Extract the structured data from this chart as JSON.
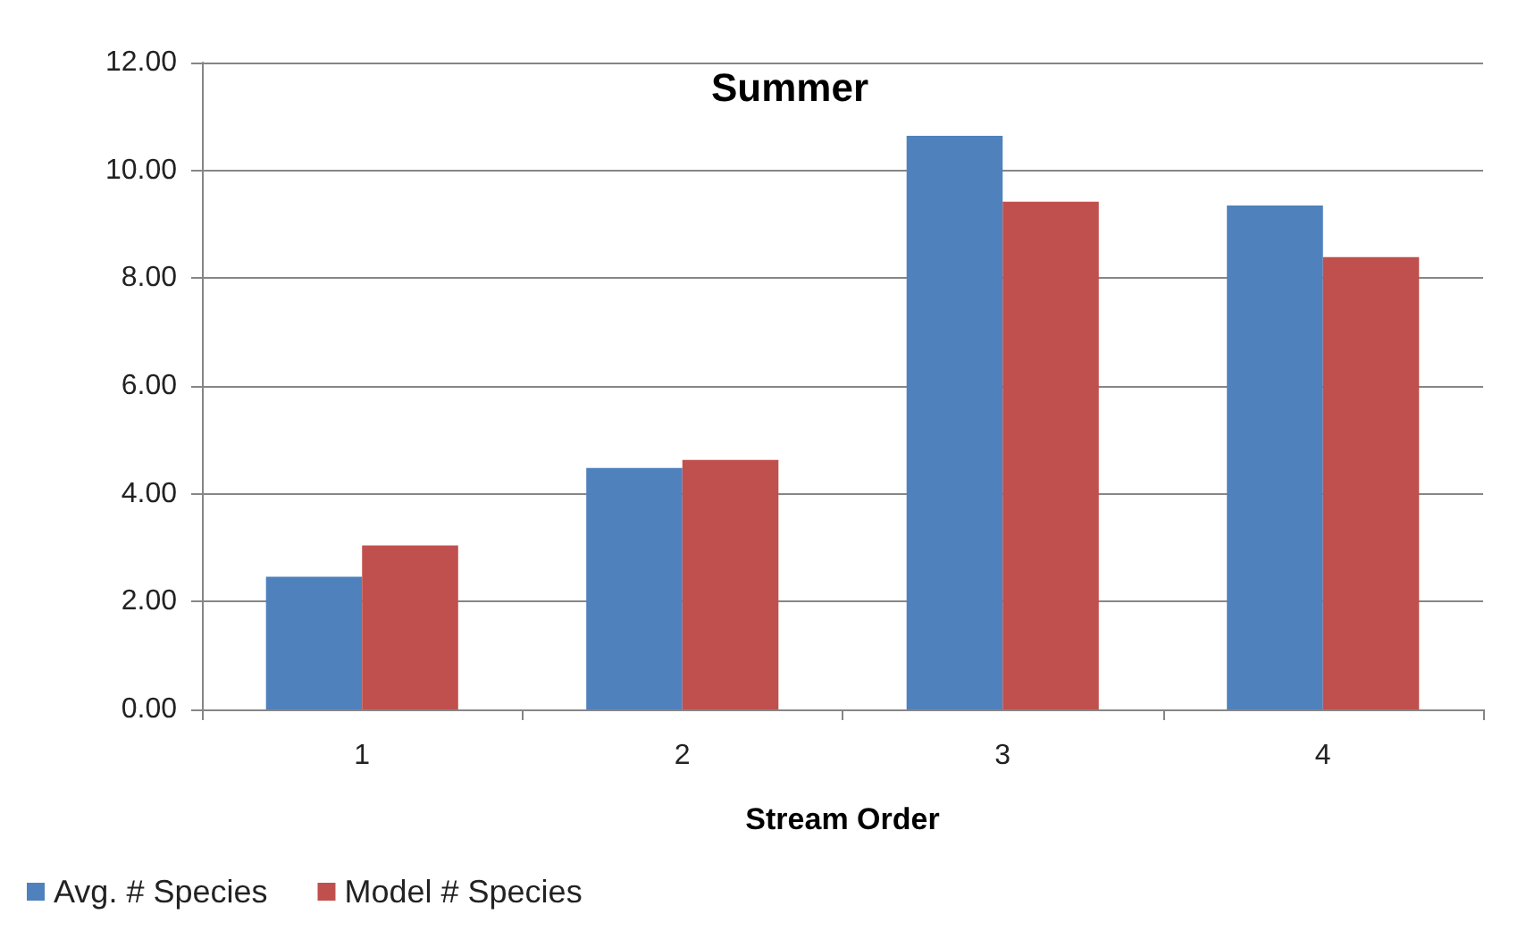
{
  "chart_data": {
    "type": "bar",
    "title": "Summer",
    "xlabel": "Stream Order",
    "categories": [
      "1",
      "2",
      "3",
      "4"
    ],
    "series": [
      {
        "name": "Avg. # Species",
        "color": "#4f81bd",
        "values": [
          2.46,
          4.48,
          10.64,
          9.35
        ]
      },
      {
        "name": "Model # Species",
        "color": "#c0504d",
        "values": [
          3.04,
          4.63,
          9.42,
          8.39
        ]
      }
    ],
    "ylim": [
      0,
      12
    ],
    "yticks": [
      {
        "value": 0,
        "label": "0.00"
      },
      {
        "value": 2,
        "label": "2.00"
      },
      {
        "value": 4,
        "label": "4.00"
      },
      {
        "value": 6,
        "label": "6.00"
      },
      {
        "value": 8,
        "label": "8.00"
      },
      {
        "value": 10,
        "label": "10.00"
      },
      {
        "value": 12,
        "label": "12.00"
      }
    ],
    "grid": "y",
    "legend": "bottom left"
  }
}
